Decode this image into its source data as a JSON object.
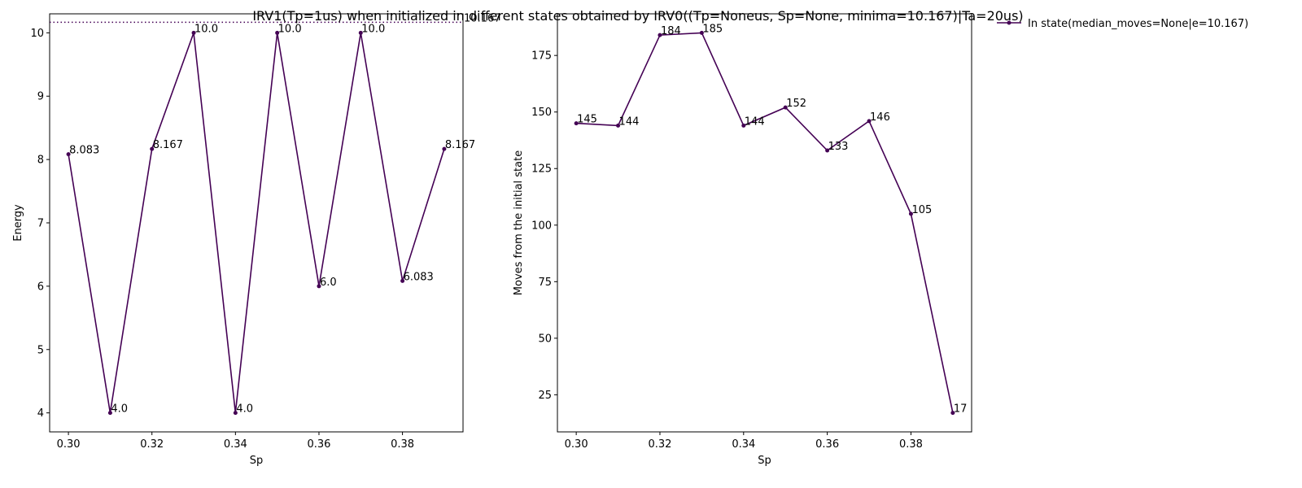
{
  "figure": {
    "title": "IRV1(Tp=1us) when initialized in different states obtained by IRV0((Tp=Noneus, Sp=None, minima=10.167)|Ta=20us)"
  },
  "colors": {
    "series": "#440154",
    "axes": "#000000",
    "background": "#ffffff"
  },
  "chart_data": [
    {
      "type": "line",
      "xlabel": "Sp",
      "ylabel": "Energy",
      "x": [
        0.3,
        0.31,
        0.32,
        0.33,
        0.34,
        0.35,
        0.36,
        0.37,
        0.38,
        0.39
      ],
      "values": [
        8.083,
        4.0,
        8.167,
        10.0,
        4.0,
        10.0,
        6.0,
        10.0,
        6.083,
        8.167
      ],
      "point_labels": [
        "8.083",
        "4.0",
        "8.167",
        "10.0",
        "4.0",
        "10.0",
        "6.0",
        "10.0",
        "6.083",
        "8.167"
      ],
      "xticks": [
        0.3,
        0.32,
        0.34,
        0.36,
        0.38
      ],
      "xtick_labels": [
        "0.30",
        "0.32",
        "0.34",
        "0.36",
        "0.38"
      ],
      "yticks": [
        4,
        5,
        6,
        7,
        8,
        9,
        10
      ],
      "ytick_labels": [
        "4",
        "5",
        "6",
        "7",
        "8",
        "9",
        "10"
      ],
      "xlim": [
        0.2955,
        0.3945
      ],
      "ylim": [
        3.7,
        10.3
      ],
      "reference_line": {
        "y": 10.167,
        "style": "dotted",
        "label": "10.167"
      },
      "grid": false
    },
    {
      "type": "line",
      "xlabel": "Sp",
      "ylabel": "Moves from the initial state",
      "series_name": "In state(median_moves=None|e=10.167)",
      "x": [
        0.3,
        0.31,
        0.32,
        0.33,
        0.34,
        0.35,
        0.36,
        0.37,
        0.38,
        0.39
      ],
      "values": [
        145,
        144,
        184,
        185,
        144,
        152,
        133,
        146,
        105,
        17
      ],
      "point_labels": [
        "145",
        "144",
        "184",
        "185",
        "144",
        "152",
        "133",
        "146",
        "105",
        "17"
      ],
      "xticks": [
        0.3,
        0.32,
        0.34,
        0.36,
        0.38
      ],
      "xtick_labels": [
        "0.30",
        "0.32",
        "0.34",
        "0.36",
        "0.38"
      ],
      "yticks": [
        25,
        50,
        75,
        100,
        125,
        150,
        175
      ],
      "ytick_labels": [
        "25",
        "50",
        "75",
        "100",
        "125",
        "150",
        "175"
      ],
      "xlim": [
        0.2955,
        0.3945
      ],
      "ylim": [
        8.6,
        193.4
      ],
      "legend": {
        "placement": "outside-top-right",
        "label": "In state(median_moves=None|e=10.167)"
      },
      "grid": false
    }
  ]
}
